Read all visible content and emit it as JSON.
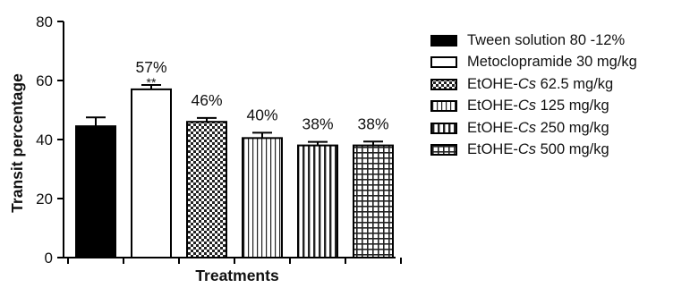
{
  "chart_data": {
    "type": "bar",
    "title": "",
    "xlabel": "Treatments",
    "ylabel": "Transit percentage",
    "ylim": [
      0,
      80
    ],
    "yticks": [
      "0",
      "20",
      "40",
      "60",
      "80"
    ],
    "grid": false,
    "legend_position": "right",
    "series": [
      {
        "name": "Tween solution 80 -12%",
        "legend_label": {
          "before": "Tween solution 80 -12%",
          "italic": "",
          "after": ""
        },
        "value": 44.5,
        "error": 3.0,
        "pattern": "solid",
        "bar_label": "",
        "significance": ""
      },
      {
        "name": "Metoclopramide 30 mg/kg",
        "legend_label": {
          "before": "Metoclopramide 30 mg/kg",
          "italic": "",
          "after": ""
        },
        "value": 57,
        "error": 1.5,
        "pattern": "white",
        "bar_label": "57%",
        "significance": "**"
      },
      {
        "name": "EtOHE-Cs 62.5 mg/kg",
        "legend_label": {
          "before": "EtOHE-",
          "italic": "Cs",
          "after": " 62.5 mg/kg"
        },
        "value": 46,
        "error": 1.3,
        "pattern": "checker",
        "bar_label": "46%",
        "significance": ""
      },
      {
        "name": "EtOHE-Cs 125 mg/kg",
        "legend_label": {
          "before": "EtOHE-",
          "italic": "Cs",
          "after": " 125 mg/kg"
        },
        "value": 40.5,
        "error": 1.8,
        "pattern": "vertical-lines",
        "bar_label": "40%",
        "significance": ""
      },
      {
        "name": "EtOHE-Cs 250 mg/kg",
        "legend_label": {
          "before": "EtOHE-",
          "italic": "Cs",
          "after": " 250 mg/kg"
        },
        "value": 38,
        "error": 1.2,
        "pattern": "vertical-stripes",
        "bar_label": "38%",
        "significance": ""
      },
      {
        "name": "EtOHE-Cs 500 mg/kg",
        "legend_label": {
          "before": "EtOHE-",
          "italic": "Cs",
          "after": " 500 mg/kg"
        },
        "value": 38,
        "error": 1.3,
        "pattern": "grid",
        "bar_label": "38%",
        "significance": ""
      }
    ]
  }
}
